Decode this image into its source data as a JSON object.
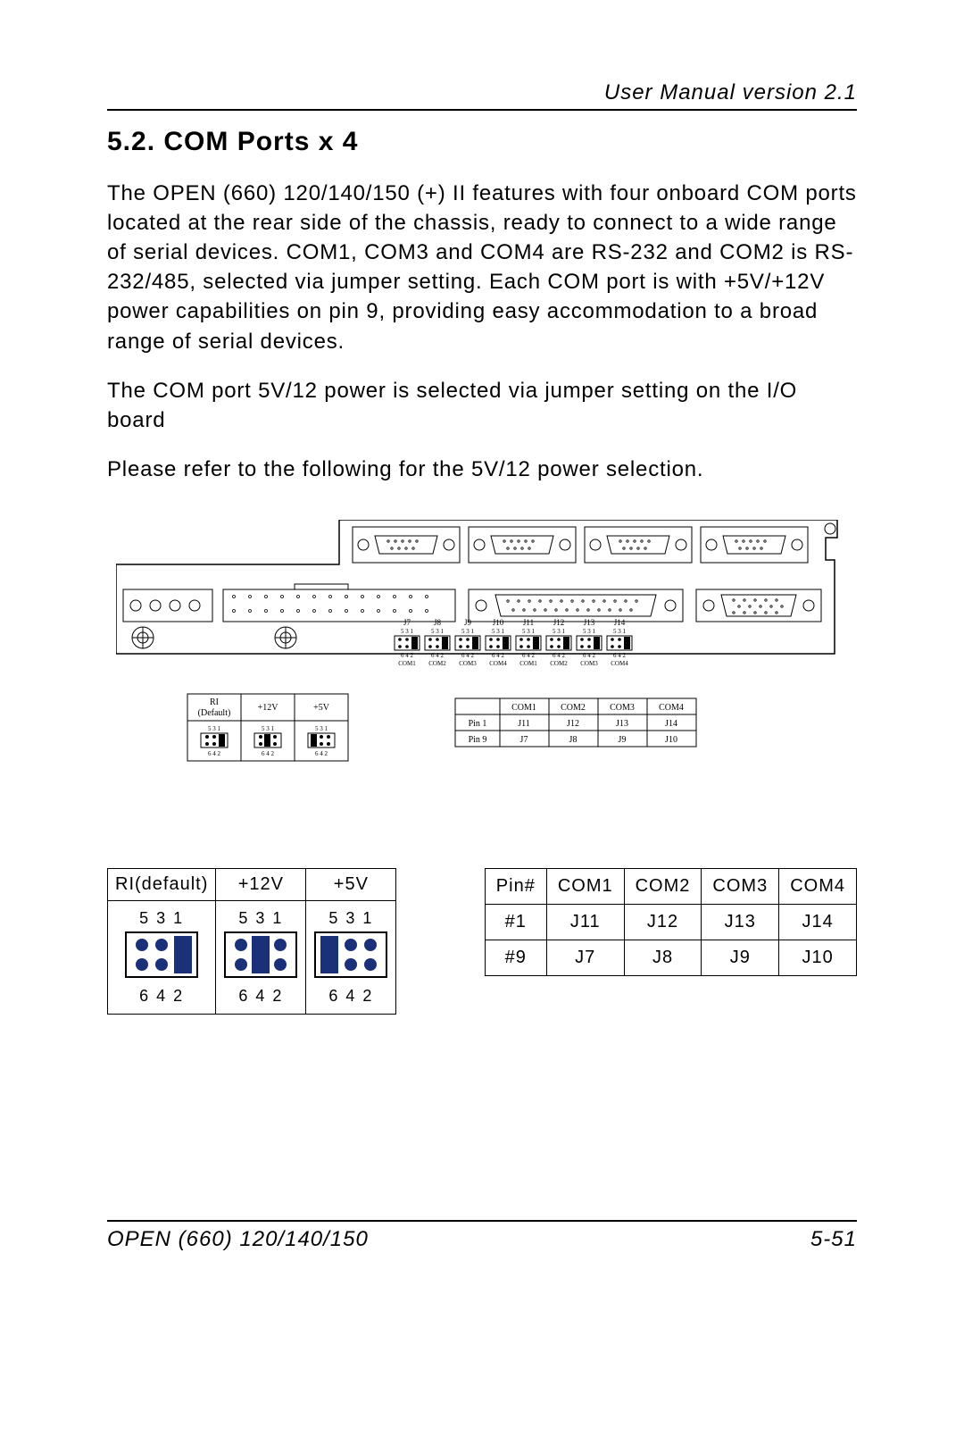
{
  "header": {
    "title": "User Manual version 2.1"
  },
  "section": {
    "heading": "5.2. COM Ports x 4",
    "p1": "The OPEN (660) 120/140/150 (+) II features with four onboard COM ports located at the rear side of the chassis, ready to connect to a wide range of serial devices.  COM1, COM3 and COM4 are RS-232 and COM2 is RS-232/485, selected via jumper setting.   Each COM port is with +5V/+12V power capabilities on pin 9, providing easy accommodation to a broad range of serial devices.",
    "p2": "The COM port 5V/12 power is selected via jumper setting on the I/O board",
    "p3": "Please refer to the following for the 5V/12 power selection."
  },
  "diagram": {
    "jumper_headers": [
      "J7",
      "J8",
      "J9",
      "J10",
      "J11",
      "J12",
      "J13",
      "J14"
    ],
    "com_labels": [
      "COM1",
      "COM2",
      "COM3",
      "COM4",
      "COM1",
      "COM2",
      "COM3",
      "COM4"
    ],
    "block_top": "5 3 1",
    "block_bot": "6 4 2",
    "small_tbl_headers": [
      "RI (Default)",
      "+12V",
      "+5V"
    ],
    "small_pin_tbl": {
      "cols": [
        "",
        "COM1",
        "COM2",
        "COM3",
        "COM4"
      ],
      "rows": [
        [
          "Pin 1",
          "J11",
          "J12",
          "J13",
          "J14"
        ],
        [
          "Pin 9",
          "J7",
          "J8",
          "J9",
          "J10"
        ]
      ]
    }
  },
  "jumper_table": {
    "headers": [
      "RI(default)",
      "+12V",
      "+5V"
    ],
    "pin_top": "5  3  1",
    "pin_bot": "6  4  2",
    "block_colors": {
      "ri": {
        "dots": "#1a317a",
        "bar_col": 2,
        "bar_color": "#1a317a"
      },
      "v12": {
        "dots": "#1a317a",
        "bar_col": 1,
        "bar_color": "#1a317a"
      },
      "v5": {
        "dots": "#1a317a",
        "bar_col": 0,
        "bar_color": "#1a317a"
      }
    }
  },
  "pin_table": {
    "cols": [
      "Pin#",
      "COM1",
      "COM2",
      "COM3",
      "COM4"
    ],
    "rows": [
      [
        "#1",
        "J11",
        "J12",
        "J13",
        "J14"
      ],
      [
        "#9",
        "J7",
        "J8",
        "J9",
        "J10"
      ]
    ]
  },
  "footer": {
    "left": "OPEN (660) 120/140/150",
    "right": "5-51"
  }
}
